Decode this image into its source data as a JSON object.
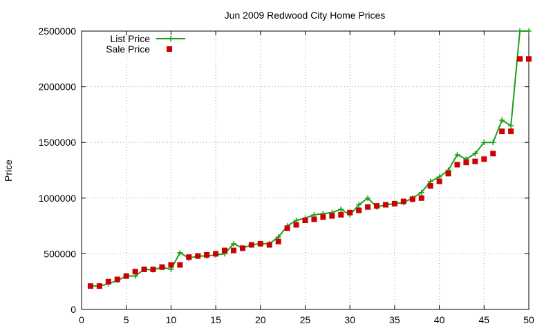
{
  "chart_data": {
    "type": "line",
    "title": "Jun 2009 Redwood City Home Prices",
    "xlabel": "",
    "ylabel": "Price",
    "xlim": [
      0,
      50
    ],
    "ylim": [
      0,
      2500000
    ],
    "x_ticks": [
      0,
      5,
      10,
      15,
      20,
      25,
      30,
      35,
      40,
      45,
      50
    ],
    "y_ticks": [
      0,
      500000,
      1000000,
      1500000,
      2000000,
      2500000
    ],
    "grid": true,
    "legend_position": "top-left",
    "x": [
      1,
      2,
      3,
      4,
      5,
      6,
      7,
      8,
      9,
      10,
      11,
      12,
      13,
      14,
      15,
      16,
      17,
      18,
      19,
      20,
      21,
      22,
      23,
      24,
      25,
      26,
      27,
      28,
      29,
      30,
      31,
      32,
      33,
      34,
      35,
      36,
      37,
      38,
      39,
      40,
      41,
      42,
      43,
      44,
      45,
      46,
      47,
      48,
      49,
      50
    ],
    "series": [
      {
        "name": "List Price",
        "style": "line-with-plus-markers",
        "color": "#1a9e1a",
        "values": [
          210000,
          210000,
          230000,
          260000,
          300000,
          300000,
          360000,
          355000,
          380000,
          360000,
          510000,
          460000,
          480000,
          480000,
          490000,
          500000,
          590000,
          550000,
          580000,
          590000,
          590000,
          650000,
          750000,
          800000,
          820000,
          850000,
          860000,
          870000,
          900000,
          850000,
          940000,
          1000000,
          920000,
          940000,
          950000,
          960000,
          1000000,
          1050000,
          1150000,
          1190000,
          1250000,
          1390000,
          1350000,
          1400000,
          1500000,
          1500000,
          1700000,
          1650000,
          2500000,
          2500000
        ]
      },
      {
        "name": "Sale Price",
        "style": "square-markers",
        "color": "#cc0000",
        "values": [
          210000,
          210000,
          250000,
          270000,
          300000,
          340000,
          360000,
          360000,
          380000,
          400000,
          400000,
          470000,
          480000,
          490000,
          500000,
          530000,
          530000,
          550000,
          580000,
          590000,
          580000,
          610000,
          730000,
          760000,
          800000,
          810000,
          830000,
          840000,
          850000,
          870000,
          890000,
          920000,
          930000,
          940000,
          950000,
          970000,
          990000,
          1000000,
          1110000,
          1150000,
          1220000,
          1300000,
          1320000,
          1330000,
          1350000,
          1400000,
          1600000,
          1600000,
          2250000,
          2250000
        ]
      }
    ]
  }
}
